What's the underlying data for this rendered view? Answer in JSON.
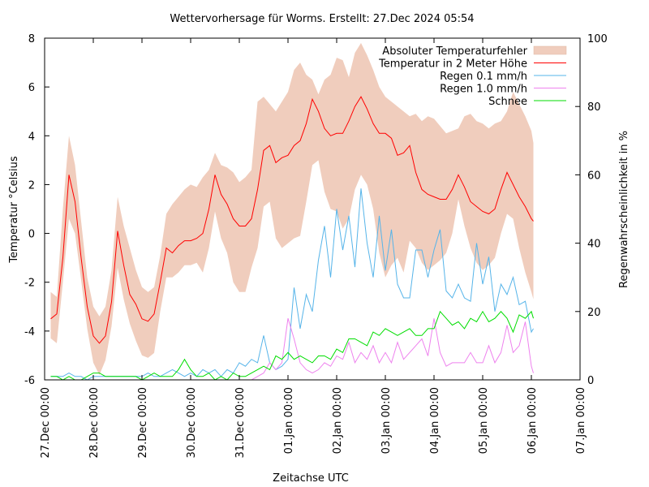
{
  "chart_data": {
    "type": "line",
    "title": "Wettervorhersage für Worms. Erstellt: 27.Dec 2024 05:54",
    "xlabel": "Zeitachse UTC",
    "ylabel": "Temperatur °Celsius",
    "y2label": "Regenwahrscheinlichkeit in %",
    "ylim": [
      -6,
      8
    ],
    "y2lim": [
      0,
      100
    ],
    "yticks": [
      -6,
      -4,
      -2,
      0,
      2,
      4,
      6,
      8
    ],
    "y2ticks": [
      0,
      20,
      40,
      60,
      80,
      100
    ],
    "xlim_hours": [
      0,
      264
    ],
    "xticks": [
      {
        "hour": 0,
        "label": "27.Dec 00:00"
      },
      {
        "hour": 24,
        "label": "28.Dec 00:00"
      },
      {
        "hour": 48,
        "label": "29.Dec 00:00"
      },
      {
        "hour": 72,
        "label": "30.Dec 00:00"
      },
      {
        "hour": 96,
        "label": "31.Dec 00:00"
      },
      {
        "hour": 120,
        "label": "01.Jan 00:00"
      },
      {
        "hour": 144,
        "label": "02.Jan 00:00"
      },
      {
        "hour": 168,
        "label": "03.Jan 00:00"
      },
      {
        "hour": 192,
        "label": "04.Jan 00:00"
      },
      {
        "hour": 216,
        "label": "05.Jan 00:00"
      },
      {
        "hour": 240,
        "label": "06.Jan 00:00"
      },
      {
        "hour": 264,
        "label": "07.Jan 00:00"
      }
    ],
    "grid": false,
    "legend_position": "top-right",
    "x_hours": [
      3,
      6,
      9,
      12,
      15,
      18,
      21,
      24,
      27,
      30,
      33,
      36,
      39,
      42,
      45,
      48,
      51,
      54,
      57,
      60,
      63,
      66,
      69,
      72,
      75,
      78,
      81,
      84,
      87,
      90,
      93,
      96,
      99,
      102,
      105,
      108,
      111,
      114,
      117,
      120,
      123,
      126,
      129,
      132,
      135,
      138,
      141,
      144,
      147,
      150,
      153,
      156,
      159,
      162,
      165,
      168,
      171,
      174,
      177,
      180,
      183,
      186,
      189,
      192,
      195,
      198,
      201,
      204,
      207,
      210,
      213,
      216,
      219,
      222,
      225,
      228,
      231,
      234,
      237,
      240,
      241
    ],
    "series": [
      {
        "name": "Absoluter Temperaturfehler",
        "kind": "band",
        "axis": "y",
        "color": "#f0cdbd",
        "upper": [
          -2.4,
          -2.6,
          1.0,
          4.0,
          2.8,
          0.5,
          -1.8,
          -3.0,
          -3.4,
          -3.0,
          -1.5,
          1.5,
          0.3,
          -0.6,
          -1.5,
          -2.2,
          -2.4,
          -2.2,
          -0.9,
          0.8,
          1.2,
          1.5,
          1.8,
          2.0,
          1.9,
          2.3,
          2.6,
          3.3,
          2.8,
          2.7,
          2.5,
          2.1,
          2.3,
          2.6,
          5.4,
          5.6,
          5.3,
          5.0,
          5.4,
          5.8,
          6.7,
          7.0,
          6.5,
          6.3,
          5.7,
          6.3,
          6.5,
          7.2,
          7.1,
          6.4,
          7.4,
          7.8,
          7.3,
          6.7,
          6.0,
          5.6,
          5.4,
          5.2,
          5.0,
          4.8,
          4.9,
          4.6,
          4.8,
          4.7,
          4.4,
          4.1,
          4.2,
          4.3,
          4.8,
          4.9,
          4.6,
          4.5,
          4.3,
          4.5,
          4.6,
          5.0,
          5.8,
          5.3,
          4.8,
          4.2,
          3.7
        ],
        "lower": [
          -4.3,
          -4.5,
          -2.0,
          0.6,
          0.0,
          -1.9,
          -3.9,
          -5.3,
          -5.8,
          -5.2,
          -3.8,
          -1.4,
          -2.7,
          -3.7,
          -4.4,
          -5.0,
          -5.1,
          -4.9,
          -3.2,
          -1.8,
          -1.8,
          -1.6,
          -1.3,
          -1.3,
          -1.2,
          -1.6,
          -0.6,
          0.9,
          -0.2,
          -0.8,
          -2.0,
          -2.4,
          -2.4,
          -1.4,
          -0.6,
          1.1,
          1.3,
          -0.2,
          -0.6,
          -0.4,
          -0.2,
          -0.1,
          1.3,
          2.8,
          3.0,
          1.7,
          1.0,
          0.9,
          0.2,
          0.6,
          1.8,
          2.4,
          2.0,
          1.0,
          -0.8,
          -1.8,
          -1.3,
          -1.0,
          -1.6,
          -0.3,
          -0.6,
          -1.2,
          -1.5,
          -1.3,
          -1.1,
          -0.8,
          0.0,
          1.4,
          0.3,
          -0.6,
          -1.2,
          -1.5,
          -1.3,
          -1.0,
          0.0,
          0.8,
          0.6,
          -0.6,
          -1.6,
          -2.4,
          -2.7
        ]
      },
      {
        "name": "Temperatur in 2 Meter Höhe",
        "kind": "line",
        "axis": "y",
        "color": "#ff0000",
        "values": [
          -3.5,
          -3.3,
          -1.0,
          2.4,
          1.3,
          -1.0,
          -3.0,
          -4.2,
          -4.5,
          -4.2,
          -2.8,
          0.1,
          -1.3,
          -2.5,
          -2.9,
          -3.5,
          -3.6,
          -3.3,
          -2.0,
          -0.6,
          -0.8,
          -0.5,
          -0.3,
          -0.3,
          -0.2,
          0.0,
          1.0,
          2.4,
          1.6,
          1.2,
          0.6,
          0.3,
          0.3,
          0.6,
          1.8,
          3.4,
          3.6,
          2.9,
          3.1,
          3.2,
          3.6,
          3.8,
          4.5,
          5.5,
          5.0,
          4.3,
          4.0,
          4.1,
          4.1,
          4.6,
          5.2,
          5.6,
          5.1,
          4.5,
          4.1,
          4.1,
          3.9,
          3.2,
          3.3,
          3.6,
          2.5,
          1.8,
          1.6,
          1.5,
          1.4,
          1.4,
          1.8,
          2.4,
          1.9,
          1.3,
          1.1,
          0.9,
          0.8,
          1.0,
          1.8,
          2.5,
          2.0,
          1.5,
          1.1,
          0.6,
          0.5
        ]
      },
      {
        "name": "Regen 0.1 mm/h",
        "kind": "line",
        "axis": "y2",
        "color": "#56b4e9",
        "values": [
          1,
          1,
          1,
          2,
          1,
          1,
          0,
          1,
          1,
          1,
          1,
          1,
          1,
          1,
          1,
          1,
          2,
          1,
          1,
          2,
          3,
          2,
          1,
          2,
          1,
          3,
          2,
          3,
          1,
          3,
          2,
          5,
          4,
          6,
          5,
          13,
          5,
          3,
          4,
          6,
          27,
          15,
          25,
          20,
          35,
          45,
          30,
          50,
          38,
          48,
          33,
          56,
          40,
          30,
          48,
          32,
          44,
          28,
          24,
          24,
          38,
          38,
          30,
          38,
          44,
          26,
          24,
          28,
          24,
          23,
          40,
          28,
          36,
          20,
          28,
          25,
          30,
          22,
          23,
          14,
          15
        ]
      },
      {
        "name": "Regen 1.0 mm/h",
        "kind": "line",
        "axis": "y2",
        "color": "#ee82ee",
        "values": [
          0,
          0,
          0,
          0,
          0,
          0,
          0,
          0,
          0,
          0,
          0,
          0,
          0,
          0,
          0,
          0,
          0,
          0,
          0,
          0,
          0,
          0,
          0,
          0,
          0,
          0,
          0,
          0,
          0,
          0,
          0,
          0,
          0,
          0,
          1,
          2,
          5,
          3,
          5,
          18,
          12,
          5,
          3,
          2,
          3,
          5,
          4,
          7,
          6,
          11,
          5,
          8,
          6,
          10,
          5,
          8,
          5,
          11,
          6,
          8,
          10,
          12,
          7,
          18,
          8,
          4,
          5,
          5,
          5,
          8,
          5,
          5,
          10,
          5,
          8,
          16,
          8,
          10,
          17,
          4,
          2
        ]
      },
      {
        "name": "Schnee",
        "kind": "line",
        "axis": "y2",
        "color": "#00dd00",
        "values": [
          1,
          1,
          0,
          1,
          0,
          0,
          1,
          2,
          2,
          1,
          1,
          1,
          1,
          1,
          1,
          0,
          1,
          2,
          1,
          1,
          1,
          3,
          6,
          3,
          1,
          1,
          2,
          0,
          1,
          0,
          2,
          1,
          1,
          2,
          3,
          4,
          3,
          7,
          6,
          8,
          6,
          7,
          6,
          5,
          7,
          7,
          6,
          9,
          8,
          12,
          12,
          11,
          10,
          14,
          13,
          15,
          14,
          13,
          14,
          15,
          13,
          13,
          15,
          15,
          20,
          18,
          16,
          17,
          15,
          18,
          17,
          20,
          17,
          18,
          20,
          18,
          14,
          19,
          18,
          20,
          18
        ]
      }
    ]
  }
}
